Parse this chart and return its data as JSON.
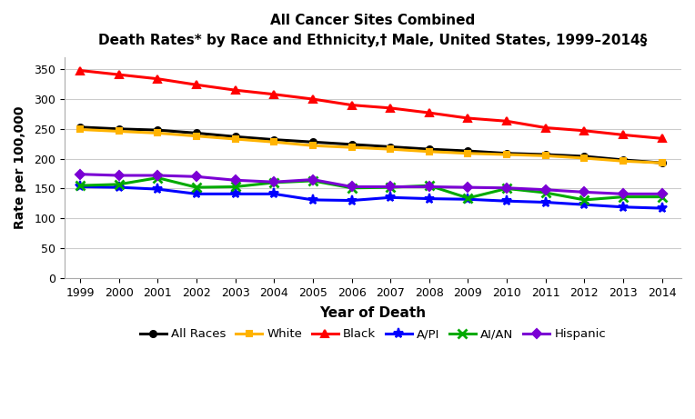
{
  "title_line1": "All Cancer Sites Combined",
  "title_line2": "Death Rates* by Race and Ethnicity,† Male, United States, 1999–2014§",
  "xlabel": "Year of Death",
  "ylabel": "Rate per 100,000",
  "years": [
    1999,
    2000,
    2001,
    2002,
    2003,
    2004,
    2005,
    2006,
    2007,
    2008,
    2009,
    2010,
    2011,
    2012,
    2013,
    2014
  ],
  "series": {
    "All Races": {
      "color": "#000000",
      "marker": "o",
      "linewidth": 2.2,
      "markersize": 5,
      "data": [
        253,
        250,
        248,
        243,
        237,
        232,
        228,
        224,
        220,
        216,
        213,
        209,
        207,
        204,
        198,
        193
      ]
    },
    "White": {
      "color": "#FFB300",
      "marker": "s",
      "linewidth": 2.2,
      "markersize": 5,
      "data": [
        249,
        246,
        243,
        238,
        233,
        228,
        222,
        219,
        216,
        212,
        209,
        207,
        205,
        201,
        196,
        193
      ]
    },
    "Black": {
      "color": "#FF0000",
      "marker": "^",
      "linewidth": 2.2,
      "markersize": 6,
      "data": [
        348,
        341,
        334,
        324,
        315,
        308,
        300,
        290,
        285,
        277,
        268,
        263,
        252,
        247,
        240,
        234
      ]
    },
    "A/PI": {
      "color": "#0000FF",
      "marker": "*",
      "linewidth": 2.2,
      "markersize": 8,
      "data": [
        153,
        152,
        149,
        141,
        141,
        141,
        131,
        130,
        135,
        133,
        132,
        129,
        127,
        123,
        119,
        117
      ]
    },
    "AI/AN": {
      "color": "#00AA00",
      "marker": "x",
      "linewidth": 2.2,
      "markersize": 7,
      "markeredgewidth": 2.0,
      "data": [
        155,
        157,
        168,
        152,
        153,
        160,
        163,
        151,
        152,
        155,
        134,
        150,
        143,
        131,
        136,
        136
      ]
    },
    "Hispanic": {
      "color": "#7B00D4",
      "marker": "D",
      "linewidth": 2.2,
      "markersize": 5,
      "data": [
        174,
        172,
        172,
        170,
        164,
        161,
        165,
        153,
        153,
        153,
        152,
        151,
        148,
        144,
        141,
        141
      ]
    }
  },
  "ylim": [
    0,
    370
  ],
  "yticks": [
    0,
    50,
    100,
    150,
    200,
    250,
    300,
    350
  ],
  "xlim": [
    1998.6,
    2014.5
  ],
  "grid_color": "#cccccc",
  "background_color": "#ffffff",
  "legend_order": [
    "All Races",
    "White",
    "Black",
    "A/PI",
    "AI/AN",
    "Hispanic"
  ]
}
